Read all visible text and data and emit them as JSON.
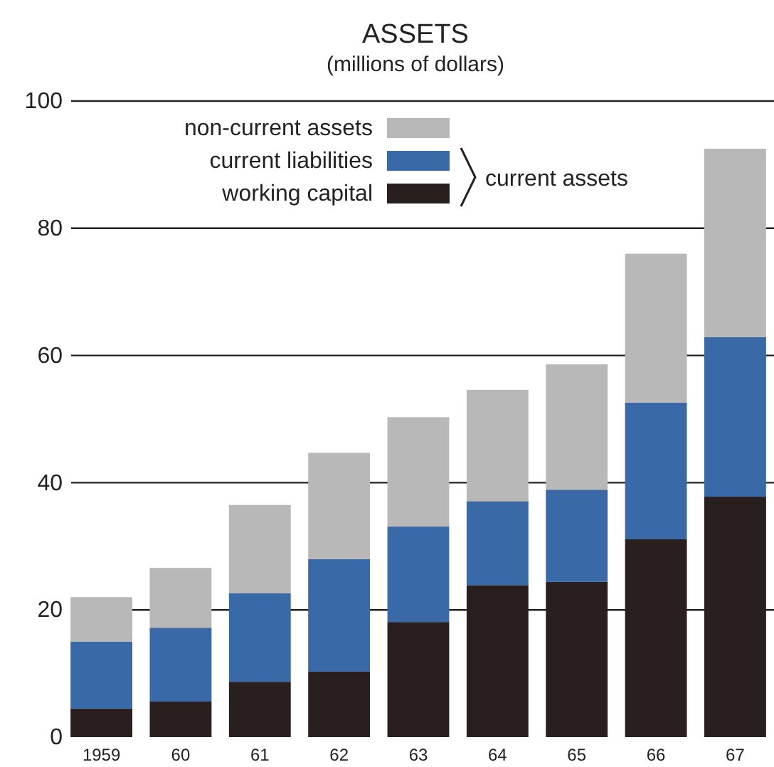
{
  "chart_data": {
    "type": "bar",
    "title": "ASSETS",
    "subtitle": "(millions of dollars)",
    "categories": [
      "1959",
      "60",
      "61",
      "62",
      "63",
      "64",
      "65",
      "66",
      "67"
    ],
    "stacked": true,
    "series": [
      {
        "name": "working capital",
        "color": "#2a1f1f",
        "values": [
          4.5,
          5.6,
          8.7,
          10.3,
          18.1,
          23.9,
          24.4,
          31.1,
          37.8
        ]
      },
      {
        "name": "current liabilities",
        "color": "#3a69a8",
        "values": [
          10.5,
          11.6,
          13.9,
          17.7,
          15,
          13.2,
          14.5,
          21.5,
          25.1
        ]
      },
      {
        "name": "non-current assets",
        "color": "#b8b8b8",
        "values": [
          7,
          9.4,
          13.9,
          16.7,
          17.2,
          17.5,
          19.7,
          23.4,
          29.6
        ]
      }
    ],
    "ylim": [
      0,
      100
    ],
    "yticks": [
      0,
      20,
      40,
      60,
      80,
      100
    ],
    "grid": "y",
    "legend": "top left",
    "annotations": [
      "current assets"
    ]
  }
}
